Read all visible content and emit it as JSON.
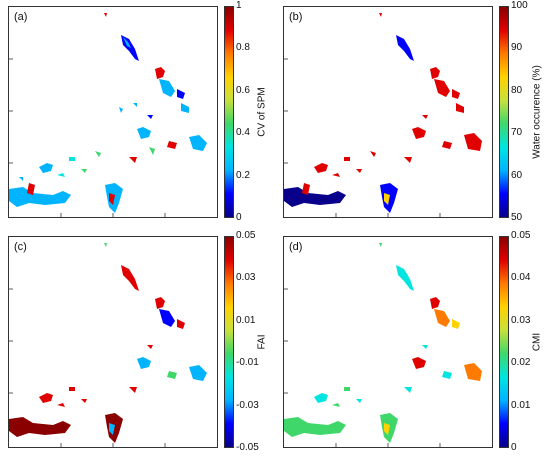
{
  "panels": [
    {
      "label": "(a)",
      "colorbar": {
        "title": "CV of SPM",
        "gradient": [
          "#08008a",
          "#0000ff",
          "#00b4ff",
          "#00e5e0",
          "#3fd76a",
          "#c8e03c",
          "#ffd200",
          "#ff7a00",
          "#e00000",
          "#8a0000"
        ],
        "ticks": [
          "1",
          "0.8",
          "0.6",
          "0.4",
          "0.2",
          "0"
        ]
      }
    },
    {
      "label": "(b)",
      "colorbar": {
        "title": "Water occurence (%)",
        "gradient": [
          "#08008a",
          "#0000ff",
          "#00b4ff",
          "#00e5e0",
          "#3fd76a",
          "#c8e03c",
          "#ffd200",
          "#ff7a00",
          "#e00000",
          "#8a0000"
        ],
        "ticks": [
          "100",
          "90",
          "80",
          "70",
          "60",
          "50"
        ]
      }
    },
    {
      "label": "(c)",
      "colorbar": {
        "title": "FAI",
        "gradient": [
          "#08008a",
          "#0000ff",
          "#00b4ff",
          "#00e5e0",
          "#3fd76a",
          "#c8e03c",
          "#ffd200",
          "#ff7a00",
          "#e00000",
          "#8a0000"
        ],
        "ticks": [
          "0.05",
          "0.03",
          "0.01",
          "-0.01",
          "-0.03",
          "-0.05"
        ]
      }
    },
    {
      "label": "(d)",
      "colorbar": {
        "title": "CMI",
        "gradient": [
          "#08008a",
          "#0000ff",
          "#00b4ff",
          "#00e5e0",
          "#3fd76a",
          "#c8e03c",
          "#ffd200",
          "#ff7a00",
          "#e00000",
          "#8a0000"
        ],
        "ticks": [
          "0.05",
          "0.04",
          "0.03",
          "0.02",
          "0.01",
          "0"
        ]
      }
    }
  ]
}
